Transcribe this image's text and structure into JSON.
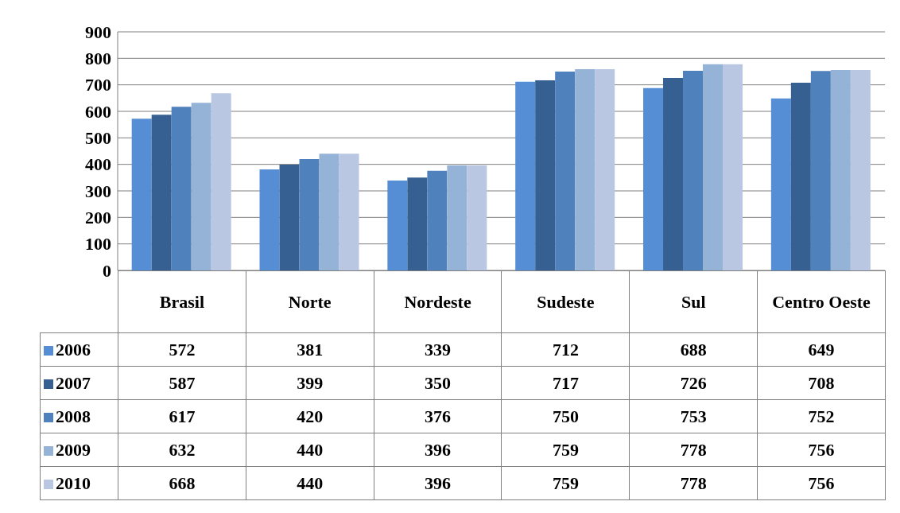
{
  "chart_data": {
    "type": "bar",
    "categories": [
      "Brasil",
      "Norte",
      "Nordeste",
      "Sudeste",
      "Sul",
      "Centro Oeste"
    ],
    "series": [
      {
        "name": "2006",
        "color": "#558ed5",
        "values": [
          572,
          381,
          339,
          712,
          688,
          649
        ]
      },
      {
        "name": "2007",
        "color": "#376092",
        "values": [
          587,
          399,
          350,
          717,
          726,
          708
        ]
      },
      {
        "name": "2008",
        "color": "#4f81bd",
        "values": [
          617,
          420,
          376,
          750,
          753,
          752
        ]
      },
      {
        "name": "2009",
        "color": "#95b3d7",
        "values": [
          632,
          440,
          396,
          759,
          778,
          756
        ]
      },
      {
        "name": "2010",
        "color": "#b9c7e3",
        "values": [
          668,
          440,
          396,
          759,
          778,
          756
        ]
      }
    ],
    "ylim": [
      0,
      900
    ],
    "yticks": [
      0,
      100,
      200,
      300,
      400,
      500,
      600,
      700,
      800,
      900
    ],
    "grid": "y",
    "legend": "bottom",
    "data_labels": true
  }
}
